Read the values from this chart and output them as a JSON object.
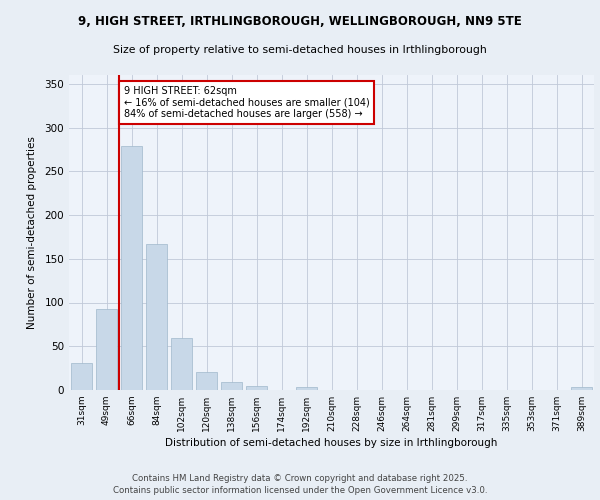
{
  "title1": "9, HIGH STREET, IRTHLINGBOROUGH, WELLINGBOROUGH, NN9 5TE",
  "title2": "Size of property relative to semi-detached houses in Irthlingborough",
  "xlabel": "Distribution of semi-detached houses by size in Irthlingborough",
  "ylabel": "Number of semi-detached properties",
  "categories": [
    "31sqm",
    "49sqm",
    "66sqm",
    "84sqm",
    "102sqm",
    "120sqm",
    "138sqm",
    "156sqm",
    "174sqm",
    "192sqm",
    "210sqm",
    "228sqm",
    "246sqm",
    "264sqm",
    "281sqm",
    "299sqm",
    "317sqm",
    "335sqm",
    "353sqm",
    "371sqm",
    "389sqm"
  ],
  "values": [
    31,
    93,
    279,
    167,
    60,
    21,
    9,
    5,
    0,
    4,
    0,
    0,
    0,
    0,
    0,
    0,
    0,
    0,
    0,
    0,
    3
  ],
  "bar_color": "#c8d8e8",
  "bar_edge_color": "#a0b8cc",
  "highlight_pct_smaller": 16,
  "highlight_count_smaller": 104,
  "highlight_pct_larger": 84,
  "highlight_count_larger": 558,
  "vline_color": "#cc0000",
  "vline_x": 1.5,
  "annotation_box_color": "#cc0000",
  "ylim": [
    0,
    360
  ],
  "yticks": [
    0,
    50,
    100,
    150,
    200,
    250,
    300,
    350
  ],
  "footer1": "Contains HM Land Registry data © Crown copyright and database right 2025.",
  "footer2": "Contains public sector information licensed under the Open Government Licence v3.0.",
  "bg_color": "#e8eef5",
  "plot_bg_color": "#eef3fa"
}
